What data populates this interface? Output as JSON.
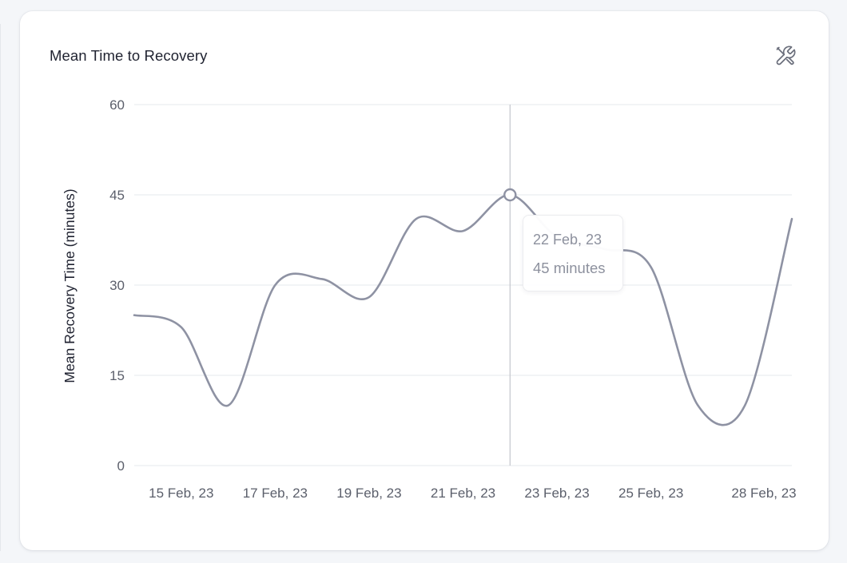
{
  "card": {
    "title": "Mean Time to Recovery",
    "tools_icon": "tools-icon"
  },
  "chart_data": {
    "type": "line",
    "title": "Mean Time to Recovery",
    "xlabel": "",
    "ylabel": "Mean Recovery Time (minutes)",
    "ylim": [
      0,
      60
    ],
    "y_ticks": [
      0,
      15,
      30,
      45,
      60
    ],
    "x_range": [
      "2023-02-14",
      "2023-02-28"
    ],
    "x_tick_labels": [
      {
        "date": "2023-02-15",
        "label": "15 Feb, 23"
      },
      {
        "date": "2023-02-17",
        "label": "17 Feb, 23"
      },
      {
        "date": "2023-02-19",
        "label": "19 Feb, 23"
      },
      {
        "date": "2023-02-21",
        "label": "21 Feb, 23"
      },
      {
        "date": "2023-02-23",
        "label": "23 Feb, 23"
      },
      {
        "date": "2023-02-25",
        "label": "25 Feb, 23"
      },
      {
        "date": "2023-02-28",
        "label": "28 Feb, 23"
      }
    ],
    "grid": true,
    "legend": "none",
    "series": [
      {
        "color": "#8e92a3",
        "points": [
          {
            "x": "2023-02-14",
            "y": 25
          },
          {
            "x": "2023-02-15",
            "y": 23
          },
          {
            "x": "2023-02-16",
            "y": 10
          },
          {
            "x": "2023-02-17",
            "y": 30
          },
          {
            "x": "2023-02-18",
            "y": 31
          },
          {
            "x": "2023-02-19",
            "y": 28
          },
          {
            "x": "2023-02-20",
            "y": 41
          },
          {
            "x": "2023-02-21",
            "y": 39
          },
          {
            "x": "2023-02-22",
            "y": 45
          },
          {
            "x": "2023-02-23",
            "y": 38
          },
          {
            "x": "2023-02-24",
            "y": 36
          },
          {
            "x": "2023-02-25",
            "y": 33
          },
          {
            "x": "2023-02-26",
            "y": 10
          },
          {
            "x": "2023-02-27",
            "y": 10
          },
          {
            "x": "2023-02-28",
            "y": 41
          }
        ]
      }
    ],
    "crosshair": {
      "x": "2023-02-22"
    },
    "tooltip": {
      "date_label": "22 Feb, 23",
      "value_label": "45 minutes"
    }
  }
}
